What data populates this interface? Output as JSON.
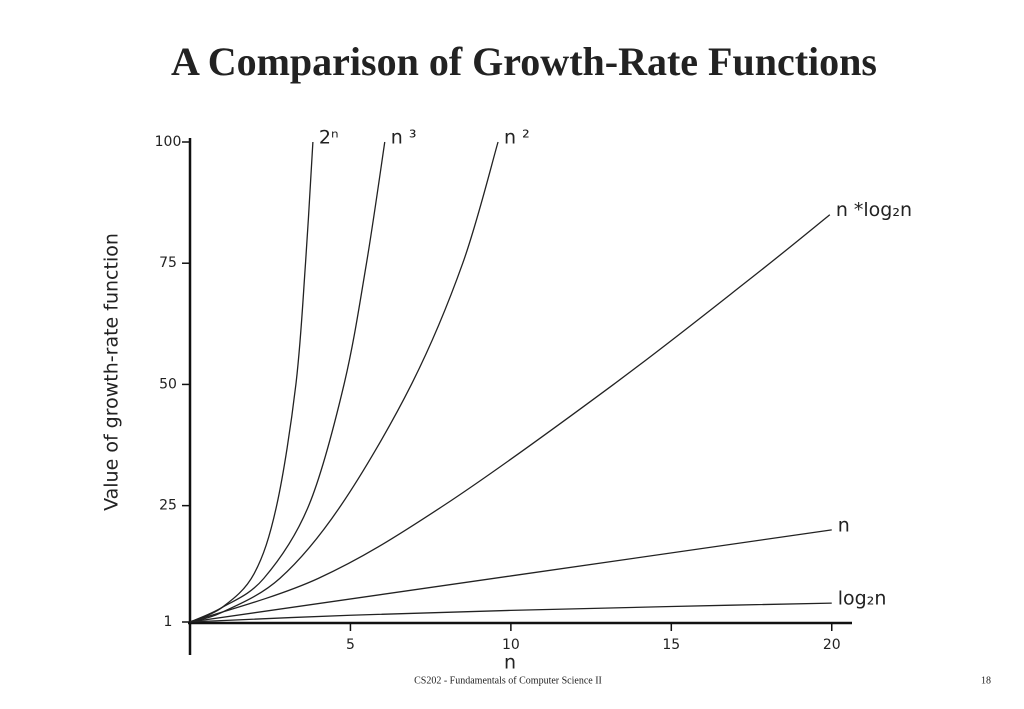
{
  "chart_data": {
    "type": "line",
    "title": "A Comparison of Growth-Rate Functions",
    "ylabel": "Value of growth-rate function",
    "xlabel": "n",
    "xlim": [
      0,
      20.6
    ],
    "ylim": [
      1,
      100
    ],
    "xticks": [
      5,
      10,
      15,
      20
    ],
    "yticks": [
      1,
      25,
      50,
      75,
      100
    ],
    "color": "#222222",
    "series": [
      {
        "name": "2ⁿ",
        "x": [
          0,
          1,
          2,
          2.7,
          3.3,
          3.6,
          3.83
        ],
        "values": [
          1,
          4,
          11,
          25,
          50,
          75,
          100
        ]
      },
      {
        "name": "n ³",
        "x": [
          0,
          1,
          2.3,
          3.7,
          4.8,
          5.5,
          6.07
        ],
        "values": [
          1,
          4,
          10,
          25,
          50,
          75,
          100
        ]
      },
      {
        "name": "n ²",
        "x": [
          0,
          1,
          2.8,
          4.7,
          6.9,
          8.5,
          9.6
        ],
        "values": [
          1,
          3,
          10,
          25,
          50,
          75,
          100
        ]
      },
      {
        "name": "n *log₂n",
        "x": [
          0,
          4,
          7.9,
          13.2,
          17.5,
          19.94
        ],
        "values": [
          1,
          10,
          25,
          50,
          72,
          85
        ]
      },
      {
        "name": "n",
        "x": [
          0,
          20
        ],
        "values": [
          1,
          20
        ]
      },
      {
        "name": "log₂n",
        "x": [
          0,
          5,
          10,
          15,
          20
        ],
        "values": [
          1,
          2.4,
          3.4,
          4.2,
          4.9
        ]
      }
    ],
    "footer": "CS202 - Fundamentals of Computer Science II",
    "page_number": "18"
  }
}
